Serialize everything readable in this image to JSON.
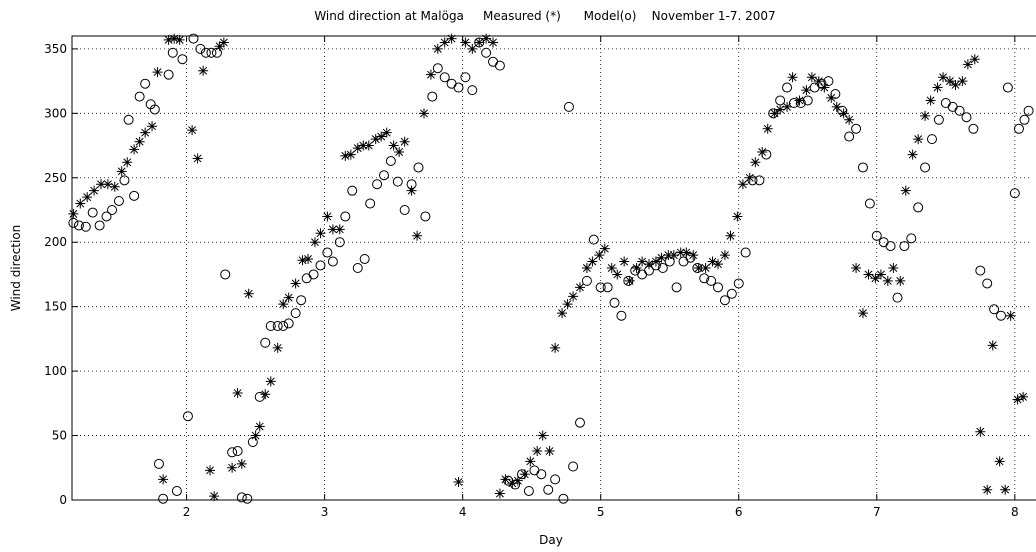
{
  "chart_data": {
    "type": "scatter",
    "title": "Wind direction at Malöga     Measured (*)      Model(o)    November 1-7. 2007",
    "x_label": "Day",
    "y_label": "Wind direction",
    "xlim": [
      1.17,
      8.11
    ],
    "ylim": [
      0,
      360
    ],
    "xticks": [
      2,
      3,
      4,
      5,
      6,
      7,
      8
    ],
    "yticks": [
      0,
      50,
      100,
      150,
      200,
      250,
      300,
      350
    ],
    "grid": true,
    "series": [
      {
        "marker": "*",
        "color": "#000000",
        "x": [
          1.18,
          1.23,
          1.28,
          1.33,
          1.38,
          1.43,
          1.48,
          1.53,
          1.57,
          1.62,
          1.66,
          1.7,
          1.75,
          1.79,
          1.83,
          1.87,
          1.91,
          1.95,
          2.04,
          2.08,
          2.12,
          2.17,
          2.2,
          2.24,
          2.27,
          2.33,
          2.37,
          2.4,
          2.45,
          2.5,
          2.53,
          2.57,
          2.61,
          2.66,
          2.7,
          2.74,
          2.79,
          2.84,
          2.88,
          2.93,
          2.97,
          3.02,
          3.06,
          3.11,
          3.15,
          3.19,
          3.24,
          3.28,
          3.32,
          3.37,
          3.41,
          3.45,
          3.5,
          3.54,
          3.58,
          3.63,
          3.67,
          3.72,
          3.77,
          3.82,
          3.87,
          3.92,
          3.97,
          4.02,
          4.07,
          4.12,
          4.17,
          4.22,
          4.27,
          4.31,
          4.36,
          4.4,
          4.45,
          4.49,
          4.54,
          4.58,
          4.63,
          4.67,
          4.72,
          4.76,
          4.8,
          4.85,
          4.9,
          4.94,
          4.99,
          5.03,
          5.08,
          5.12,
          5.17,
          5.21,
          5.26,
          5.3,
          5.35,
          5.4,
          5.44,
          5.49,
          5.53,
          5.58,
          5.62,
          5.67,
          5.71,
          5.76,
          5.81,
          5.85,
          5.9,
          5.94,
          5.99,
          6.03,
          6.08,
          6.12,
          6.17,
          6.21,
          6.26,
          6.3,
          6.35,
          6.39,
          6.44,
          6.49,
          6.53,
          6.58,
          6.62,
          6.67,
          6.71,
          6.76,
          6.8,
          6.85,
          6.9,
          6.94,
          6.99,
          7.03,
          7.08,
          7.12,
          7.17,
          7.21,
          7.26,
          7.3,
          7.35,
          7.39,
          7.44,
          7.48,
          7.53,
          7.57,
          7.62,
          7.66,
          7.71,
          7.75,
          7.8,
          7.84,
          7.89,
          7.93,
          7.97,
          8.02,
          8.06
        ],
        "values": [
          222,
          230,
          235,
          240,
          245,
          245,
          243,
          255,
          262,
          272,
          278,
          285,
          290,
          332,
          16,
          357,
          358,
          357,
          287,
          265,
          333,
          23,
          3,
          352,
          355,
          25,
          83,
          28,
          160,
          50,
          57,
          82,
          92,
          118,
          152,
          157,
          168,
          186,
          187,
          200,
          207,
          220,
          210,
          210,
          267,
          268,
          273,
          275,
          275,
          280,
          282,
          285,
          275,
          270,
          278,
          240,
          205,
          300,
          330,
          350,
          355,
          358,
          14,
          355,
          350,
          355,
          358,
          355,
          5,
          16,
          13,
          15,
          20,
          30,
          38,
          50,
          38,
          118,
          145,
          152,
          158,
          165,
          180,
          185,
          190,
          195,
          180,
          175,
          185,
          170,
          180,
          185,
          183,
          185,
          188,
          190,
          190,
          192,
          192,
          190,
          180,
          180,
          185,
          183,
          190,
          205,
          220,
          245,
          250,
          262,
          270,
          288,
          300,
          303,
          305,
          328,
          310,
          318,
          328,
          325,
          320,
          312,
          305,
          300,
          295,
          180,
          145,
          175,
          172,
          175,
          170,
          180,
          170,
          240,
          268,
          280,
          298,
          310,
          320,
          328,
          325,
          322,
          325,
          338,
          342,
          53,
          8,
          120,
          30,
          8,
          143,
          78,
          80
        ]
      },
      {
        "marker": "o",
        "color": "#000000",
        "x": [
          1.18,
          1.22,
          1.27,
          1.32,
          1.37,
          1.42,
          1.46,
          1.51,
          1.55,
          1.58,
          1.62,
          1.66,
          1.7,
          1.74,
          1.77,
          1.8,
          1.83,
          1.87,
          1.9,
          1.93,
          1.97,
          2.01,
          2.05,
          2.1,
          2.14,
          2.18,
          2.22,
          2.28,
          2.33,
          2.37,
          2.4,
          2.44,
          2.48,
          2.53,
          2.57,
          2.61,
          2.66,
          2.7,
          2.74,
          2.79,
          2.83,
          2.87,
          2.92,
          2.97,
          3.02,
          3.06,
          3.11,
          3.15,
          3.2,
          3.24,
          3.29,
          3.33,
          3.38,
          3.43,
          3.48,
          3.53,
          3.58,
          3.63,
          3.68,
          3.73,
          3.78,
          3.82,
          3.87,
          3.92,
          3.97,
          4.02,
          4.07,
          4.12,
          4.17,
          4.22,
          4.27,
          4.33,
          4.38,
          4.43,
          4.48,
          4.52,
          4.57,
          4.62,
          4.67,
          4.73,
          4.77,
          4.8,
          4.85,
          4.9,
          4.95,
          5.0,
          5.05,
          5.1,
          5.15,
          5.2,
          5.25,
          5.3,
          5.35,
          5.4,
          5.45,
          5.5,
          5.55,
          5.6,
          5.65,
          5.7,
          5.75,
          5.8,
          5.85,
          5.9,
          5.95,
          6.0,
          6.05,
          6.1,
          6.15,
          6.2,
          6.25,
          6.3,
          6.35,
          6.4,
          6.45,
          6.5,
          6.55,
          6.6,
          6.65,
          6.7,
          6.75,
          6.8,
          6.85,
          6.9,
          6.95,
          7.0,
          7.05,
          7.1,
          7.15,
          7.2,
          7.25,
          7.3,
          7.35,
          7.4,
          7.45,
          7.5,
          7.55,
          7.6,
          7.65,
          7.7,
          7.75,
          7.8,
          7.85,
          7.9,
          7.95,
          8.0,
          8.03,
          8.07,
          8.1
        ],
        "values": [
          215,
          213,
          212,
          223,
          213,
          220,
          225,
          232,
          248,
          295,
          236,
          313,
          323,
          307,
          303,
          28,
          1,
          330,
          347,
          7,
          342,
          65,
          358,
          350,
          347,
          347,
          347,
          175,
          37,
          38,
          2,
          1,
          45,
          80,
          122,
          135,
          135,
          135,
          137,
          145,
          155,
          172,
          175,
          182,
          192,
          185,
          200,
          220,
          240,
          180,
          187,
          230,
          245,
          252,
          263,
          247,
          225,
          245,
          258,
          220,
          313,
          335,
          328,
          323,
          320,
          328,
          318,
          355,
          347,
          340,
          337,
          15,
          12,
          20,
          7,
          23,
          20,
          8,
          16,
          1,
          305,
          26,
          60,
          170,
          202,
          165,
          165,
          153,
          143,
          170,
          178,
          175,
          178,
          182,
          180,
          185,
          165,
          185,
          188,
          180,
          172,
          170,
          165,
          155,
          160,
          168,
          192,
          248,
          248,
          268,
          300,
          310,
          320,
          308,
          308,
          310,
          320,
          323,
          325,
          315,
          302,
          282,
          288,
          258,
          230,
          205,
          200,
          197,
          157,
          197,
          203,
          227,
          258,
          280,
          295,
          308,
          305,
          302,
          297,
          288,
          178,
          168,
          148,
          143,
          320,
          238,
          288,
          295,
          302
        ]
      }
    ]
  }
}
